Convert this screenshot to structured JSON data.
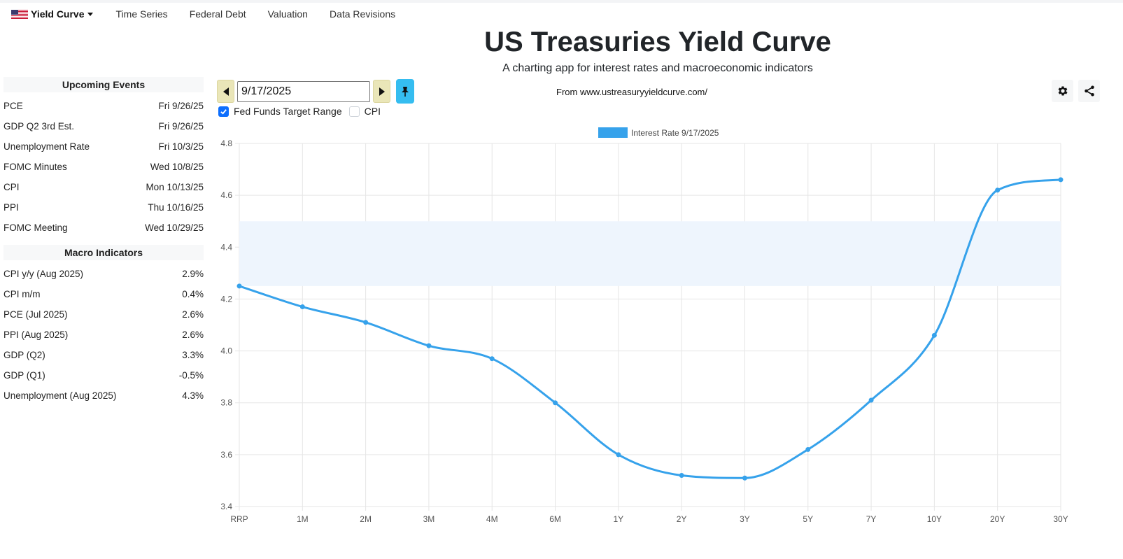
{
  "nav": {
    "brand": "Yield Curve",
    "links": [
      "Time Series",
      "Federal Debt",
      "Valuation",
      "Data Revisions"
    ]
  },
  "header": {
    "title": "US Treasuries Yield Curve",
    "subtitle": "A charting app for interest rates and macroeconomic indicators"
  },
  "controls": {
    "date": "9/17/2025",
    "source": "From www.ustreasuryyieldcurve.com/",
    "checks": [
      {
        "label": "Fed Funds Target Range",
        "checked": true
      },
      {
        "label": "CPI",
        "checked": false
      }
    ]
  },
  "events": {
    "title": "Upcoming Events",
    "items": [
      {
        "name": "PCE",
        "date": "Fri 9/26/25"
      },
      {
        "name": "GDP Q2 3rd Est.",
        "date": "Fri 9/26/25"
      },
      {
        "name": "Unemployment Rate",
        "date": "Fri 10/3/25"
      },
      {
        "name": "FOMC Minutes",
        "date": "Wed 10/8/25"
      },
      {
        "name": "CPI",
        "date": "Mon 10/13/25"
      },
      {
        "name": "PPI",
        "date": "Thu 10/16/25"
      },
      {
        "name": "FOMC Meeting",
        "date": "Wed 10/29/25"
      }
    ]
  },
  "macro": {
    "title": "Macro Indicators",
    "items": [
      {
        "name": "CPI y/y (Aug 2025)",
        "value": "2.9%"
      },
      {
        "name": "CPI m/m",
        "value": "0.4%"
      },
      {
        "name": "PCE (Jul 2025)",
        "value": "2.6%"
      },
      {
        "name": "PPI (Aug 2025)",
        "value": "2.6%"
      },
      {
        "name": "GDP (Q2)",
        "value": "3.3%"
      },
      {
        "name": "GDP (Q1)",
        "value": "-0.5%"
      },
      {
        "name": "Unemployment (Aug 2025)",
        "value": "4.3%"
      }
    ]
  },
  "colors": {
    "line": "#36a2eb",
    "band": "#eef5fd",
    "grid": "#e6e6e6"
  },
  "chart_data": {
    "type": "line",
    "categories": [
      "RRP",
      "1M",
      "2M",
      "3M",
      "4M",
      "6M",
      "1Y",
      "2Y",
      "3Y",
      "5Y",
      "7Y",
      "10Y",
      "20Y",
      "30Y"
    ],
    "series": [
      {
        "name": "Interest Rate 9/17/2025",
        "values": [
          4.25,
          4.17,
          4.11,
          4.02,
          3.97,
          3.8,
          3.6,
          3.52,
          3.51,
          3.62,
          3.81,
          4.06,
          4.62,
          4.66
        ]
      }
    ],
    "band": {
      "label": "Fed Funds Target Range",
      "low": 4.25,
      "high": 4.5
    },
    "ylim": [
      3.4,
      4.8
    ],
    "yticks": [
      3.4,
      3.6,
      3.8,
      4.0,
      4.2,
      4.4,
      4.6,
      4.8
    ],
    "legend": "top-center"
  }
}
